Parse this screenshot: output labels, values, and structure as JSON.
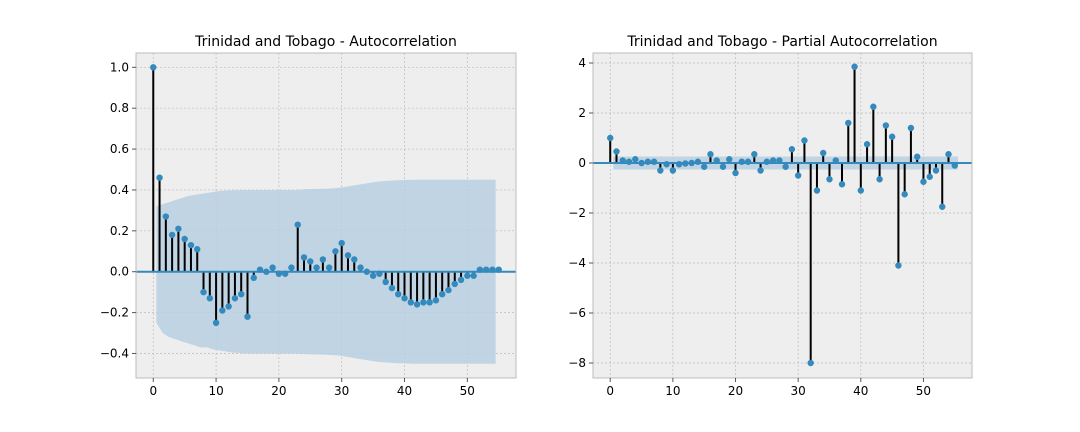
{
  "chart_data": [
    {
      "type": "stem",
      "title": "Trinidad and Tobago - Autocorrelation",
      "xlabel": "",
      "ylabel": "",
      "xlim": [
        -2.75,
        57.75
      ],
      "ylim": [
        -0.52,
        1.07
      ],
      "xticks": [
        0,
        10,
        20,
        30,
        40,
        50
      ],
      "yticks": [
        -0.4,
        -0.2,
        0.0,
        0.2,
        0.4,
        0.6,
        0.8,
        1.0
      ],
      "ytick_labels": [
        "−0.4",
        "−0.2",
        "0.0",
        "0.2",
        "0.4",
        "0.6",
        "0.8",
        "1.0"
      ],
      "grid": true,
      "lags": [
        0,
        1,
        2,
        3,
        4,
        5,
        6,
        7,
        8,
        9,
        10,
        11,
        12,
        13,
        14,
        15,
        16,
        17,
        18,
        19,
        20,
        21,
        22,
        23,
        24,
        25,
        26,
        27,
        28,
        29,
        30,
        31,
        32,
        33,
        34,
        35,
        36,
        37,
        38,
        39,
        40,
        41,
        42,
        43,
        44,
        45,
        46,
        47,
        48,
        49,
        50,
        51,
        52,
        53,
        54,
        55
      ],
      "values": [
        1.0,
        0.46,
        0.27,
        0.18,
        0.21,
        0.16,
        0.13,
        0.11,
        -0.1,
        -0.13,
        -0.25,
        -0.19,
        -0.17,
        -0.13,
        -0.11,
        -0.22,
        -0.03,
        0.01,
        0.0,
        0.02,
        -0.01,
        -0.01,
        0.02,
        0.23,
        0.07,
        0.05,
        0.02,
        0.06,
        0.02,
        0.1,
        0.14,
        0.08,
        0.06,
        0.02,
        0.0,
        -0.02,
        -0.01,
        -0.05,
        -0.08,
        -0.11,
        -0.13,
        -0.15,
        -0.16,
        -0.15,
        -0.15,
        -0.14,
        -0.11,
        -0.09,
        -0.06,
        -0.04,
        -0.02,
        -0.02,
        0.01,
        0.01,
        0.01,
        0.01
      ],
      "confidence_band": {
        "upper": [
          0.0,
          0.32,
          0.33,
          0.34,
          0.35,
          0.36,
          0.37,
          0.375,
          0.38,
          0.385,
          0.39,
          0.395,
          0.397,
          0.398,
          0.399,
          0.4,
          0.4,
          0.4,
          0.4,
          0.4,
          0.4,
          0.4,
          0.4,
          0.4,
          0.402,
          0.404,
          0.405,
          0.405,
          0.406,
          0.408,
          0.41,
          0.415,
          0.42,
          0.425,
          0.43,
          0.435,
          0.44,
          0.443,
          0.445,
          0.447,
          0.448,
          0.449,
          0.45,
          0.45,
          0.45,
          0.45,
          0.45,
          0.45,
          0.45,
          0.45,
          0.45,
          0.45,
          0.45,
          0.45,
          0.45,
          0.45
        ],
        "lower": [
          0.0,
          -0.25,
          -0.3,
          -0.32,
          -0.33,
          -0.34,
          -0.35,
          -0.36,
          -0.37,
          -0.37,
          -0.38,
          -0.385,
          -0.39,
          -0.395,
          -0.397,
          -0.4,
          -0.4,
          -0.4,
          -0.4,
          -0.4,
          -0.4,
          -0.4,
          -0.4,
          -0.4,
          -0.402,
          -0.404,
          -0.405,
          -0.405,
          -0.406,
          -0.408,
          -0.41,
          -0.415,
          -0.42,
          -0.425,
          -0.43,
          -0.435,
          -0.44,
          -0.443,
          -0.445,
          -0.447,
          -0.448,
          -0.449,
          -0.45,
          -0.45,
          -0.45,
          -0.45,
          -0.45,
          -0.45,
          -0.45,
          -0.45,
          -0.45,
          -0.45,
          -0.45,
          -0.45,
          -0.45,
          -0.45
        ]
      },
      "colors": {
        "marker": "#348abd",
        "stem": "#000000",
        "band": "#b7cfe0",
        "zero_line": "#348abd",
        "axes_bg": "#eeeeee",
        "grid": "#bbbbbb"
      }
    },
    {
      "type": "stem",
      "title": "Trinidad and Tobago - Partial Autocorrelation",
      "xlabel": "",
      "ylabel": "",
      "xlim": [
        -2.75,
        57.75
      ],
      "ylim": [
        -8.6,
        4.4
      ],
      "xticks": [
        0,
        10,
        20,
        30,
        40,
        50
      ],
      "yticks": [
        -8,
        -6,
        -4,
        -2,
        0,
        2,
        4
      ],
      "ytick_labels": [
        "−8",
        "−6",
        "−4",
        "−2",
        "0",
        "2",
        "4"
      ],
      "grid": true,
      "lags": [
        0,
        1,
        2,
        3,
        4,
        5,
        6,
        7,
        8,
        9,
        10,
        11,
        12,
        13,
        14,
        15,
        16,
        17,
        18,
        19,
        20,
        21,
        22,
        23,
        24,
        25,
        26,
        27,
        28,
        29,
        30,
        31,
        32,
        33,
        34,
        35,
        36,
        37,
        38,
        39,
        40,
        41,
        42,
        43,
        44,
        45,
        46,
        47,
        48,
        49,
        50,
        51,
        52,
        53,
        54,
        55
      ],
      "values": [
        1.0,
        0.46,
        0.1,
        0.05,
        0.15,
        0.0,
        0.05,
        0.05,
        -0.3,
        -0.05,
        -0.3,
        -0.05,
        -0.02,
        0.0,
        0.05,
        -0.15,
        0.35,
        0.1,
        -0.15,
        0.15,
        -0.4,
        0.05,
        0.05,
        0.35,
        -0.3,
        0.05,
        0.1,
        0.1,
        -0.15,
        0.55,
        -0.5,
        0.9,
        -8.0,
        -1.1,
        0.4,
        -0.65,
        0.1,
        -0.85,
        1.6,
        3.85,
        -1.1,
        0.75,
        2.25,
        -0.65,
        1.5,
        1.05,
        -4.1,
        -1.25,
        1.4,
        0.25,
        -0.75,
        -0.55,
        -0.3,
        -1.75,
        0.35,
        -0.1
      ],
      "confidence_band": {
        "upper": 0.26,
        "lower": -0.26
      },
      "colors": {
        "marker": "#348abd",
        "stem": "#000000",
        "band": "#b7cfe0",
        "zero_line": "#348abd",
        "axes_bg": "#eeeeee",
        "grid": "#bbbbbb"
      }
    }
  ]
}
